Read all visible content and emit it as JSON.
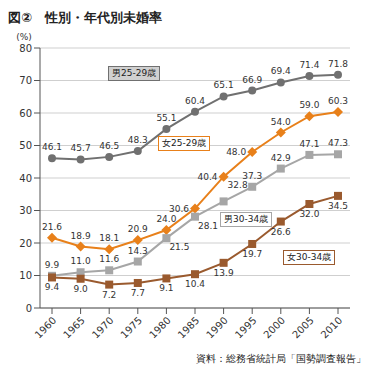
{
  "chart_data": {
    "type": "line",
    "title": "図②　性別・年代別未婚率",
    "ylabel": "(%)",
    "source": "資料：総務省統計局「国勢調査報告」",
    "categories": [
      "1960",
      "1965",
      "1970",
      "1975",
      "1980",
      "1985",
      "1990",
      "1995",
      "2000",
      "2005",
      "2010"
    ],
    "series": [
      {
        "name": "男25-29歳",
        "color": "#707070",
        "marker": "circle",
        "values": [
          46.1,
          45.7,
          46.5,
          48.3,
          55.1,
          60.4,
          65.1,
          66.9,
          69.4,
          71.4,
          71.8
        ],
        "value_labels": [
          "46.1",
          "45.7",
          "46.5",
          "48.3",
          "55.1",
          "60.4",
          "65.1",
          "66.9",
          "69.4",
          "71.4",
          "71.8"
        ]
      },
      {
        "name": "女25-29歳",
        "color": "#e8801a",
        "marker": "diamond",
        "values": [
          21.6,
          18.9,
          18.1,
          20.9,
          24.0,
          30.6,
          40.4,
          48.0,
          54.0,
          59.0,
          60.3
        ],
        "value_labels": [
          "21.6",
          "18.9",
          "18.1",
          "20.9",
          "24.0",
          "30.6",
          "40.4",
          "48.0",
          "54.0",
          "59.0",
          "60.3"
        ]
      },
      {
        "name": "男30-34歳",
        "color": "#a6a6a6",
        "marker": "square",
        "values": [
          9.9,
          11.0,
          11.6,
          14.3,
          21.5,
          28.1,
          32.8,
          37.3,
          42.9,
          47.1,
          47.3
        ],
        "value_labels": [
          "9.9",
          "11.0",
          "11.6",
          "14.3",
          "21.5",
          "28.1",
          "32.8",
          "37.3",
          "42.9",
          "47.1",
          "47.3"
        ]
      },
      {
        "name": "女30-34歳",
        "color": "#9a5a2e",
        "marker": "square",
        "values": [
          9.4,
          9.0,
          7.2,
          7.7,
          9.1,
          10.4,
          13.9,
          19.7,
          26.6,
          32.0,
          34.5
        ],
        "value_labels": [
          "9.4",
          "9.0",
          "7.2",
          "7.7",
          "9.1",
          "10.4",
          "13.9",
          "19.7",
          "26.6",
          "32.0",
          "34.5"
        ]
      }
    ],
    "ylim": [
      0,
      80
    ],
    "yticks": [
      0,
      10,
      20,
      30,
      40,
      50,
      60,
      70,
      80
    ],
    "grid": true,
    "data_labels": true
  }
}
